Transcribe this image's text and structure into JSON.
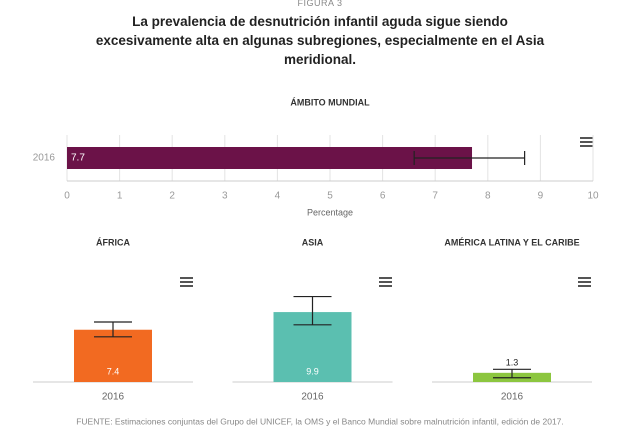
{
  "header": {
    "figure": "FIGURA 3",
    "title": "La prevalencia de desnutrición infantil aguda sigue siendo excesivamente alta en algunas subregiones, especialmente en el Asia meridional."
  },
  "chart_data": [
    {
      "type": "hbar",
      "title": "ÁMBITO MUNDIAL",
      "categories": [
        "2016"
      ],
      "values": [
        7.7
      ],
      "error_low": [
        6.6
      ],
      "error_high": [
        8.7
      ],
      "color": "#6b1248",
      "xlim": [
        0,
        10
      ],
      "xticks": [
        0,
        1,
        2,
        3,
        4,
        5,
        6,
        7,
        8,
        9,
        10
      ],
      "xlabel": "Percentage",
      "grid": true
    },
    {
      "type": "bar",
      "title": "ÁFRICA",
      "categories": [
        "2016"
      ],
      "values": [
        7.4
      ],
      "error_low": [
        6.4
      ],
      "error_high": [
        8.5
      ],
      "color": "#f26a21",
      "ylim": [
        0,
        16
      ]
    },
    {
      "type": "bar",
      "title": "ASIA",
      "categories": [
        "2016"
      ],
      "values": [
        9.9
      ],
      "error_low": [
        8.1
      ],
      "error_high": [
        12.1
      ],
      "color": "#5bbfb0",
      "ylim": [
        0,
        16
      ]
    },
    {
      "type": "bar",
      "title": "AMÉRICA LATINA Y EL CARIBE",
      "categories": [
        "2016"
      ],
      "values": [
        1.3
      ],
      "error_low": [
        0.6
      ],
      "error_high": [
        1.8
      ],
      "color": "#8cc63f",
      "ylim": [
        0,
        16
      ]
    }
  ],
  "source": "FUENTE: Estimaciones conjuntas del Grupo del UNICEF, la OMS y el Banco Mundial sobre malnutrición infantil, edición de 2017."
}
